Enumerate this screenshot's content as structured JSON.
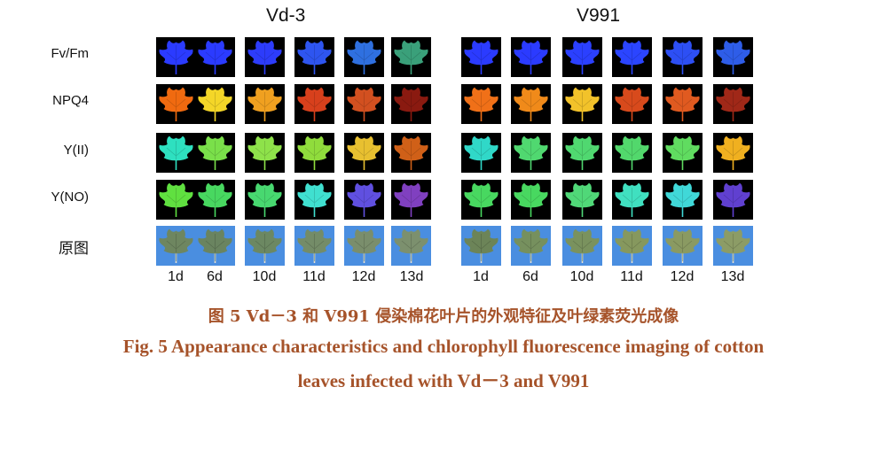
{
  "figure": {
    "panels": [
      {
        "title": "Vd-3"
      },
      {
        "title": "V991"
      }
    ],
    "row_labels": [
      "Fv/Fm",
      "NPQ4",
      "Y(II)",
      "Y(NO)",
      "原图"
    ],
    "days": [
      [
        "1d",
        "6d",
        "10d",
        "11d",
        "12d",
        "13d"
      ],
      [
        "1d",
        "6d",
        "10d",
        "11d",
        "12d",
        "13d"
      ]
    ],
    "colors": {
      "rows": {
        "fvfm": {
          "bg": "#000000",
          "leaf": [
            "#2b3bff",
            "#2b3bff",
            "#2d3cfb",
            "#2e55f0",
            "#2f70e0",
            "#3aa07a"
          ],
          "leaf_v": [
            "#2b3bff",
            "#2b3bff",
            "#2b40ff",
            "#2b45ff",
            "#2d4ff4",
            "#2e5de8"
          ]
        },
        "npq4": {
          "bg": "#000000",
          "leaf": [
            "#f06a10",
            "#f4d628",
            "#f0a020",
            "#d8401c",
            "#d25020",
            "#8a1a10"
          ],
          "leaf_v": [
            "#f07018",
            "#f08a1a",
            "#f2c22a",
            "#d84a1c",
            "#e05a20",
            "#a02818"
          ]
        },
        "y2": {
          "bg": "#000000",
          "leaf": [
            "#2ee0c0",
            "#7ae04a",
            "#8ee24a",
            "#90dc3c",
            "#e8c030",
            "#d06018"
          ],
          "leaf_v": [
            "#30d8c8",
            "#50d870",
            "#50d870",
            "#52d86c",
            "#60dc60",
            "#f0b020"
          ]
        },
        "yno": {
          "bg": "#000000",
          "leaf": [
            "#60e040",
            "#48d860",
            "#48d870",
            "#40e0d0",
            "#6050e0",
            "#8040c0"
          ],
          "leaf_v": [
            "#48d860",
            "#48d860",
            "#50d878",
            "#40e0c0",
            "#40d8d8",
            "#6040d0"
          ]
        },
        "photo": {
          "bg": "#4a8ee0",
          "leaf": [
            "#6e8660",
            "#6a8460",
            "#6c8862",
            "#748c68",
            "#7a8e6c",
            "#7c906e"
          ],
          "leaf_v": [
            "#6c8458",
            "#76905e",
            "#7a925e",
            "#86985e",
            "#8a9a62",
            "#8c9c66"
          ]
        }
      }
    }
  },
  "caption": {
    "cn": "图 5   Vd－3 和 V991 侵染棉花叶片的外观特征及叶绿素荧光成像",
    "en_line1": "Fig. 5    Appearance characteristics and chlorophyll fluorescence imaging of cotton",
    "en_line2": "leaves infected with Vd－3 and V991"
  }
}
